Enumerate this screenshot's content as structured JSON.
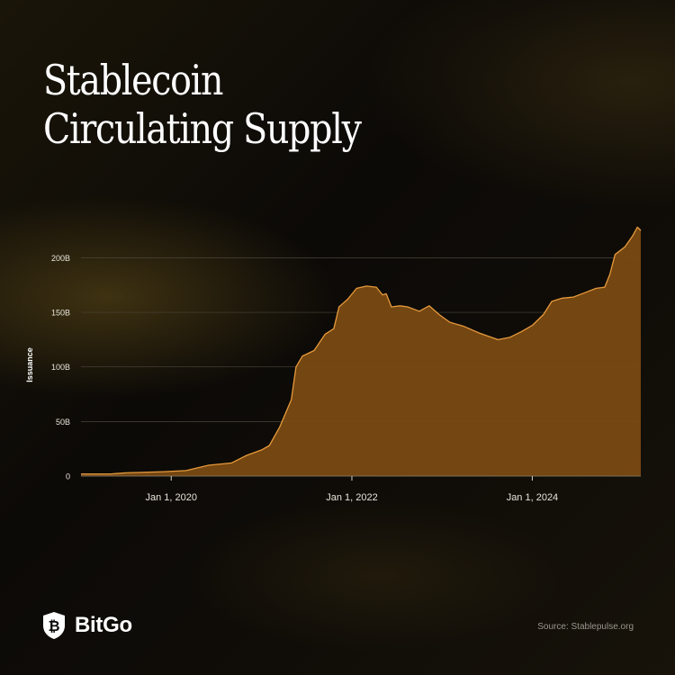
{
  "title_lines": [
    "Stablecoin",
    "Circulating Supply"
  ],
  "brand": {
    "name": "BitGo",
    "logo_icon": "bitgo-shield-bitcoin-icon"
  },
  "source": "Source: Stablepulse.org",
  "colors": {
    "area_fill": "#7a4a12",
    "area_stroke": "#e69a3c",
    "grid": "#4a4538",
    "tick_text": "#e8e4da"
  },
  "chart_data": {
    "type": "area",
    "title": "",
    "ylabel": "Issuance",
    "xlabel": "",
    "ylim": [
      0,
      230
    ],
    "yticks": [
      {
        "value": 0,
        "label": "0"
      },
      {
        "value": 50,
        "label": "50B"
      },
      {
        "value": 100,
        "label": "100B"
      },
      {
        "value": 150,
        "label": "150B"
      },
      {
        "value": 200,
        "label": "200B"
      }
    ],
    "xlim": [
      "2019-01-01",
      "2025-03-15"
    ],
    "xticks": [
      {
        "value": "2020-01-01",
        "label": "Jan 1, 2020"
      },
      {
        "value": "2022-01-01",
        "label": "Jan 1, 2022"
      },
      {
        "value": "2024-01-01",
        "label": "Jan 1, 2024"
      }
    ],
    "grid": true,
    "units": "billions USD",
    "series": [
      {
        "values": [
          [
            "2019-01-01",
            2
          ],
          [
            "2019-05-01",
            2
          ],
          [
            "2019-07-01",
            3
          ],
          [
            "2019-12-01",
            4
          ],
          [
            "2020-03-01",
            5
          ],
          [
            "2020-06-01",
            10
          ],
          [
            "2020-09-01",
            12
          ],
          [
            "2020-11-01",
            19
          ],
          [
            "2021-01-01",
            24
          ],
          [
            "2021-02-01",
            28
          ],
          [
            "2021-03-15",
            45
          ],
          [
            "2021-05-01",
            70
          ],
          [
            "2021-05-20",
            100
          ],
          [
            "2021-06-15",
            110
          ],
          [
            "2021-08-01",
            115
          ],
          [
            "2021-09-15",
            130
          ],
          [
            "2021-10-20",
            135
          ],
          [
            "2021-11-10",
            155
          ],
          [
            "2021-12-15",
            162
          ],
          [
            "2022-01-20",
            172
          ],
          [
            "2022-03-01",
            174
          ],
          [
            "2022-04-10",
            173
          ],
          [
            "2022-05-05",
            166
          ],
          [
            "2022-05-20",
            167
          ],
          [
            "2022-06-10",
            155
          ],
          [
            "2022-07-15",
            156
          ],
          [
            "2022-08-15",
            155
          ],
          [
            "2022-10-01",
            151
          ],
          [
            "2022-11-10",
            156
          ],
          [
            "2022-12-20",
            148
          ],
          [
            "2023-02-01",
            141
          ],
          [
            "2023-04-01",
            137
          ],
          [
            "2023-06-01",
            131
          ],
          [
            "2023-08-15",
            125
          ],
          [
            "2023-10-01",
            127
          ],
          [
            "2023-11-15",
            132
          ],
          [
            "2024-01-01",
            138
          ],
          [
            "2024-02-15",
            148
          ],
          [
            "2024-03-20",
            160
          ],
          [
            "2024-05-01",
            163
          ],
          [
            "2024-06-15",
            164
          ],
          [
            "2024-08-01",
            168
          ],
          [
            "2024-09-15",
            172
          ],
          [
            "2024-10-20",
            173
          ],
          [
            "2024-11-10",
            185
          ],
          [
            "2024-12-01",
            203
          ],
          [
            "2025-01-10",
            210
          ],
          [
            "2025-02-10",
            220
          ],
          [
            "2025-03-01",
            228
          ],
          [
            "2025-03-15",
            225
          ]
        ]
      }
    ]
  }
}
